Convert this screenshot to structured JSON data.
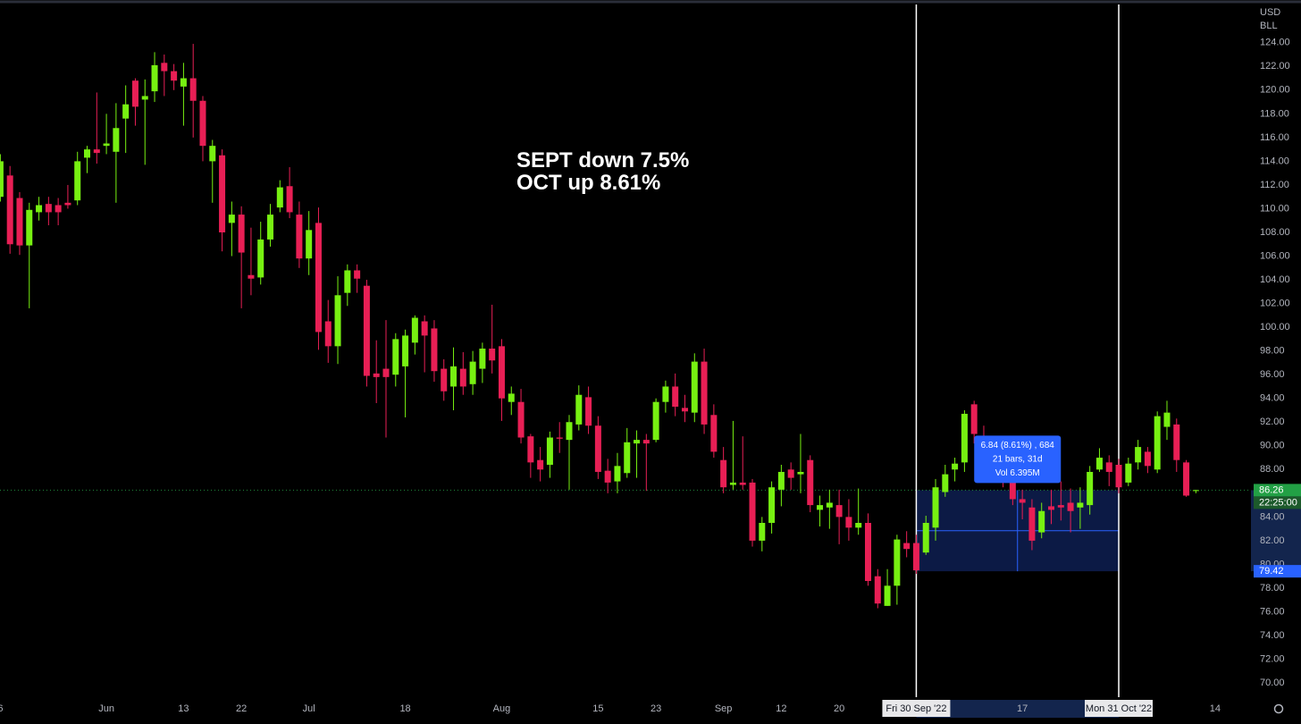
{
  "chart_data": {
    "type": "candlestick",
    "currency": "USD",
    "symbol": "BLL",
    "annotation": [
      "SEPT down 7.5%",
      "OCT up 8.61%"
    ],
    "up_color": "#77f011",
    "down_color": "#e81f55",
    "ylim": [
      68.8,
      127.6
    ],
    "yticks": [
      {
        "value": 70,
        "label": "70.00"
      },
      {
        "value": 72,
        "label": "72.00"
      },
      {
        "value": 74,
        "label": "74.00"
      },
      {
        "value": 76,
        "label": "76.00"
      },
      {
        "value": 78,
        "label": "78.00"
      },
      {
        "value": 80,
        "label": "80.00"
      },
      {
        "value": 82,
        "label": "82.00"
      },
      {
        "value": 84,
        "label": "84.00"
      },
      {
        "value": 86,
        "label": "86.00"
      },
      {
        "value": 88,
        "label": "88.00"
      },
      {
        "value": 90,
        "label": "90.00"
      },
      {
        "value": 92,
        "label": "92.00"
      },
      {
        "value": 94,
        "label": "94.00"
      },
      {
        "value": 96,
        "label": "96.00"
      },
      {
        "value": 98,
        "label": "98.00"
      },
      {
        "value": 100,
        "label": "100.00"
      },
      {
        "value": 102,
        "label": "102.00"
      },
      {
        "value": 104,
        "label": "104.00"
      },
      {
        "value": 106,
        "label": "106.00"
      },
      {
        "value": 108,
        "label": "108.00"
      },
      {
        "value": 110,
        "label": "110.00"
      },
      {
        "value": 112,
        "label": "112.00"
      },
      {
        "value": 114,
        "label": "114.00"
      },
      {
        "value": 116,
        "label": "116.00"
      },
      {
        "value": 118,
        "label": "118.00"
      },
      {
        "value": 120,
        "label": "120.00"
      },
      {
        "value": 122,
        "label": "122.00"
      },
      {
        "value": 124,
        "label": "124.00"
      }
    ],
    "categories": [
      "6",
      null,
      null,
      null,
      null,
      null,
      null,
      null,
      null,
      null,
      null,
      "Jun",
      null,
      null,
      null,
      null,
      null,
      null,
      null,
      "13",
      null,
      null,
      null,
      null,
      null,
      "22",
      null,
      null,
      null,
      null,
      null,
      null,
      "Jul",
      null,
      null,
      null,
      null,
      null,
      null,
      null,
      null,
      null,
      "18",
      null,
      null,
      null,
      null,
      null,
      null,
      null,
      null,
      null,
      "Aug",
      null,
      null,
      null,
      null,
      null,
      null,
      null,
      null,
      null,
      "15",
      null,
      null,
      null,
      null,
      null,
      "23",
      null,
      null,
      null,
      null,
      null,
      null,
      "Sep",
      null,
      null,
      null,
      null,
      null,
      "12",
      null,
      null,
      null,
      null,
      null,
      "20",
      null,
      null,
      null,
      null,
      null,
      null,
      null,
      "Fri 30 Sep '22",
      null,
      null,
      null,
      null,
      null,
      null,
      null,
      null,
      null,
      null,
      "17",
      null,
      null,
      null,
      null,
      null,
      null,
      null,
      null,
      null,
      "Mon 31 Oct '22",
      null,
      null,
      null,
      null,
      null,
      null,
      null,
      null,
      null,
      "14"
    ],
    "crosshair_categories": [
      95,
      116
    ],
    "open": [
      111,
      112.8,
      110.9,
      106.9,
      109.7,
      110.4,
      110.3,
      110.5,
      110.7,
      114.3,
      115,
      115.3,
      114.8,
      117.6,
      120.8,
      119.2,
      119.9,
      122.3,
      121.6,
      120.3,
      121,
      119.1,
      114,
      114.5,
      108.8,
      109.5,
      104.4,
      104.2,
      107.4,
      110.1,
      111.9,
      109.5,
      105.8,
      108.8,
      100.5,
      98.4,
      102.9,
      104.8,
      103.5,
      96.1,
      96.5,
      96,
      96.7,
      98.7,
      100.5,
      99.9,
      96.5,
      95,
      96.5,
      95.2,
      96.5,
      98.2,
      98.4,
      93.7,
      93.7,
      90.8,
      88.8,
      88.4,
      90.7,
      90.5,
      91.8,
      94.1,
      91.7,
      87.9,
      87,
      87.7,
      90.2,
      90.5,
      90.5,
      93.7,
      95,
      93.2,
      92.8,
      97.1,
      92.6,
      88.8,
      86.7,
      86.9,
      86.9,
      82,
      83.5,
      86.3,
      88,
      87.6,
      88.8,
      84.6,
      84.8,
      85,
      84,
      83.1,
      83.5,
      79,
      76.5,
      78.2,
      81.8,
      81.8,
      81,
      83.1,
      86.1,
      88,
      88.6,
      93.5,
      90.8,
      89.9,
      88.8,
      87.3,
      85.5,
      84.8,
      82.7,
      84.9,
      85,
      85.2,
      84.8,
      85,
      88,
      88.6,
      88.4,
      86.9,
      88.6,
      89.5,
      88,
      91.6,
      91.8,
      88.6,
      86.2,
      null,
      null
    ],
    "high": [
      114.6,
      113.6,
      111.4,
      110.5,
      111,
      111,
      110.9,
      112,
      114.8,
      115.3,
      119.8,
      118,
      118.9,
      120.4,
      121,
      120.9,
      123.2,
      123,
      122.2,
      122.3,
      123.9,
      119.5,
      115.8,
      115,
      110.6,
      110.2,
      108.4,
      108.9,
      110.4,
      112.4,
      113.5,
      110.6,
      109.8,
      110.1,
      102.3,
      104.3,
      105.3,
      105.3,
      104,
      98.9,
      100.6,
      99.5,
      99.8,
      101,
      101,
      100.6,
      97.3,
      98.3,
      97.9,
      98,
      98.7,
      101.9,
      99,
      95,
      94.8,
      91,
      89.9,
      91.2,
      92,
      92.6,
      95.1,
      95,
      92.5,
      88.9,
      89.4,
      91.5,
      91.3,
      91,
      94,
      95.5,
      96.1,
      94.3,
      97.8,
      98.2,
      93.5,
      89.9,
      92.1,
      90.8,
      87.2,
      84,
      87,
      88.4,
      88.6,
      91,
      89.2,
      85.8,
      86.3,
      86.3,
      85.5,
      86.4,
      84.3,
      79.6,
      79.6,
      82.5,
      82.8,
      82.5,
      84.1,
      87.2,
      88.4,
      89,
      93,
      93.8,
      91.7,
      90.4,
      89.2,
      88,
      86.3,
      85.5,
      85.2,
      86.3,
      87,
      86.4,
      86.5,
      88.3,
      89.8,
      89.2,
      88.9,
      89,
      90.5,
      89.9,
      92.9,
      93.8,
      92.3,
      88.8,
      86.3,
      null,
      null
    ],
    "low": [
      110.6,
      106.2,
      106.1,
      101.6,
      109,
      108.6,
      108.6,
      110,
      110.3,
      113,
      113.8,
      114.6,
      110.5,
      114.7,
      117,
      113.7,
      119,
      119.5,
      120,
      117,
      116,
      114,
      110.5,
      106.4,
      106,
      101.6,
      102.7,
      103.6,
      106.8,
      109.7,
      109.2,
      105,
      104.4,
      98.1,
      97,
      96.9,
      101.8,
      102.9,
      95,
      93.6,
      90.7,
      95,
      92.4,
      97.7,
      96.2,
      95.4,
      93.8,
      93,
      94.3,
      94.3,
      95.3,
      96.1,
      92.1,
      92.6,
      90.2,
      87.3,
      87,
      87.3,
      89.4,
      86.3,
      91.3,
      91,
      87.2,
      86,
      86,
      87.3,
      87.3,
      86.2,
      90.3,
      92.8,
      92.5,
      92,
      92,
      91,
      89,
      86,
      86.3,
      86.3,
      81.5,
      81.1,
      82.6,
      84.9,
      86.3,
      86,
      84.4,
      83.2,
      83,
      81.7,
      82,
      82.5,
      78.2,
      76.3,
      76.5,
      76.6,
      80.6,
      79.2,
      80.8,
      82,
      85.7,
      87,
      87.8,
      90.2,
      88.4,
      88.5,
      86.5,
      85,
      83.8,
      81.2,
      82.2,
      83.4,
      83.7,
      82.7,
      83,
      84.2,
      87.8,
      86.6,
      86,
      86.6,
      88,
      87.7,
      87.7,
      90.5,
      87.8,
      85.7,
      86,
      null,
      null
    ],
    "close": [
      114,
      107,
      106.9,
      109.9,
      110.3,
      109.7,
      109.7,
      110.3,
      114,
      115,
      114.7,
      115.5,
      116.8,
      118.8,
      118.6,
      119.5,
      122.1,
      121.6,
      120.8,
      121,
      119.1,
      115.3,
      115.3,
      108,
      109.5,
      106.3,
      104.1,
      107.4,
      109.5,
      111.8,
      109.7,
      105.8,
      108.2,
      99.6,
      98.4,
      102.7,
      104.8,
      104.1,
      95.9,
      95.8,
      95.8,
      99,
      99.3,
      100.8,
      99.3,
      96.3,
      94.6,
      96.7,
      95,
      97.1,
      98.2,
      97.2,
      94,
      94.4,
      90.7,
      88.6,
      88,
      90.7,
      90.6,
      92,
      94.3,
      91.7,
      87.8,
      86.9,
      88.3,
      90.3,
      90.5,
      90.2,
      93.7,
      95,
      93.3,
      92.9,
      97.1,
      91.8,
      89.5,
      86.5,
      86.9,
      86.7,
      82,
      83.5,
      86.5,
      87.8,
      87.3,
      87.8,
      85,
      85,
      85.2,
      84,
      83.1,
      83.5,
      78.6,
      76.7,
      78.2,
      82.1,
      81.3,
      79.5,
      83.5,
      86.5,
      87.6,
      88.5,
      92.7,
      91,
      90.3,
      89.2,
      87.3,
      85.5,
      85.2,
      82,
      84.5,
      84.6,
      84.8,
      84.5,
      85.2,
      87.8,
      89,
      87.8,
      86.5,
      88.5,
      89.9,
      88.3,
      92.5,
      92.8,
      88.8,
      85.8,
      86.26,
      null,
      null
    ],
    "last_price": 86.26,
    "countdown": "22:25:00",
    "measure": {
      "low": 79.42,
      "high": 86.26,
      "tooltip": [
        "6.84 (8.61%) , 684",
        "21 bars, 31d",
        "Vol 6.395M"
      ]
    }
  }
}
